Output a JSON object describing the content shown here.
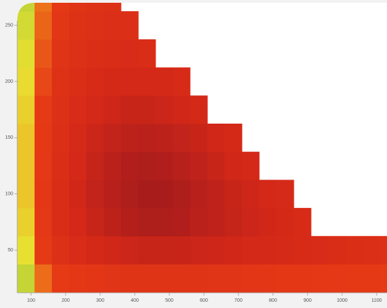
{
  "chart_data": {
    "type": "contour",
    "x": [
      85,
      135,
      185,
      235,
      285,
      335,
      385,
      435,
      485,
      535,
      585,
      635,
      685,
      735,
      785,
      835,
      885,
      935,
      985,
      1035,
      1085,
      1135
    ],
    "y": [
      25,
      50,
      75,
      100,
      125,
      150,
      175,
      200,
      225,
      250,
      275
    ],
    "z": [
      [
        30,
        55,
        62,
        65,
        66,
        67,
        68,
        68,
        68,
        68,
        68,
        67,
        67,
        66,
        66,
        65,
        65,
        64,
        64,
        63,
        63,
        62
      ],
      [
        35,
        62,
        72,
        76,
        79,
        81,
        83,
        84,
        84,
        84,
        83,
        82,
        81,
        80,
        79,
        78,
        77,
        76,
        75,
        74,
        73,
        72
      ],
      [
        38,
        64,
        75,
        80,
        84,
        88,
        91,
        93,
        93,
        92,
        89,
        87,
        85,
        83,
        81,
        79,
        77,
        null,
        null,
        null,
        null,
        null
      ],
      [
        40,
        65,
        75,
        81,
        86,
        90,
        93,
        95,
        95,
        93,
        90,
        87,
        84,
        82,
        80,
        78,
        null,
        null,
        null,
        null,
        null,
        null
      ],
      [
        40,
        64,
        74,
        80,
        85,
        89,
        92,
        93,
        92,
        90,
        87,
        84,
        81,
        79,
        null,
        null,
        null,
        null,
        null,
        null,
        null,
        null
      ],
      [
        40,
        63,
        73,
        78,
        83,
        86,
        88,
        89,
        88,
        86,
        84,
        81,
        79,
        null,
        null,
        null,
        null,
        null,
        null,
        null,
        null,
        null
      ],
      [
        38,
        62,
        72,
        76,
        80,
        82,
        84,
        84,
        83,
        81,
        79,
        null,
        null,
        null,
        null,
        null,
        null,
        null,
        null,
        null,
        null,
        null
      ],
      [
        36,
        60,
        70,
        74,
        77,
        79,
        80,
        80,
        79,
        77,
        null,
        null,
        null,
        null,
        null,
        null,
        null,
        null,
        null,
        null,
        null,
        null
      ],
      [
        34,
        58,
        68,
        72,
        74,
        75,
        76,
        75,
        null,
        null,
        null,
        null,
        null,
        null,
        null,
        null,
        null,
        null,
        null,
        null,
        null,
        null
      ],
      [
        32,
        56,
        66,
        70,
        72,
        73,
        73,
        null,
        null,
        null,
        null,
        null,
        null,
        null,
        null,
        null,
        null,
        null,
        null,
        null,
        null,
        null
      ],
      [
        30,
        54,
        64,
        68,
        70,
        71,
        null,
        null,
        null,
        null,
        null,
        null,
        null,
        null,
        null,
        null,
        null,
        null,
        null,
        null,
        null,
        null
      ]
    ],
    "colorscale": [
      {
        "value": 20,
        "color": "#7cc040"
      },
      {
        "value": 35,
        "color": "#e8e030"
      },
      {
        "value": 50,
        "color": "#f0901c"
      },
      {
        "value": 62,
        "color": "#e63a16"
      },
      {
        "value": 80,
        "color": "#d42818"
      },
      {
        "value": 95,
        "color": "#a81c1c"
      }
    ],
    "xlim": [
      60,
      1130
    ],
    "ylim": [
      12,
      270
    ],
    "xticks": [
      100,
      200,
      300,
      400,
      500,
      600,
      700,
      800,
      900,
      1000,
      1100
    ],
    "yticks": [
      50,
      100,
      150,
      200,
      250
    ]
  }
}
